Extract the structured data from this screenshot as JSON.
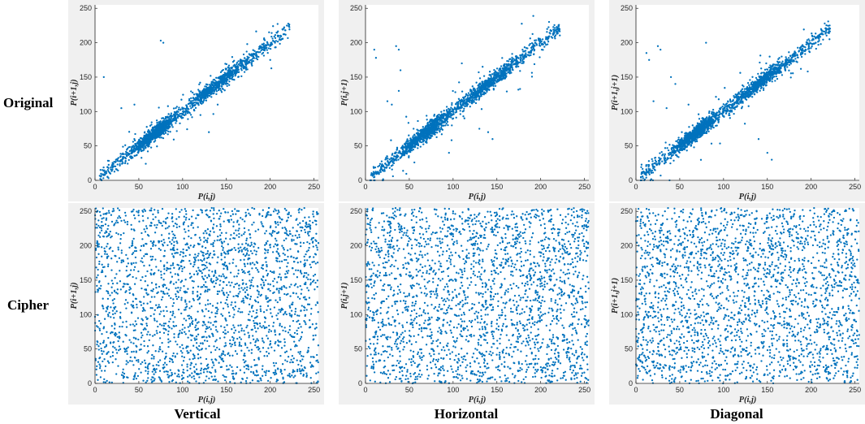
{
  "row_labels": [
    "Original",
    "Cipher"
  ],
  "col_labels": [
    "Vertical",
    "Horizontal",
    "Diagonal"
  ],
  "colors": {
    "points": "#0072BD",
    "axes_bg": "#ffffff",
    "figure_bg": "#f0f0f0",
    "axis": "#262626"
  },
  "chart_data": [
    {
      "id": "original-vertical",
      "type": "scatter",
      "distribution": "correlated",
      "xlabel": "P(i,j)",
      "ylabel": "P(i+1,j)",
      "xlim": [
        0,
        255
      ],
      "ylim": [
        0,
        255
      ],
      "xticks": [
        0,
        50,
        100,
        150,
        200,
        250
      ],
      "yticks": [
        0,
        50,
        100,
        150,
        200,
        250
      ],
      "trend": {
        "x_range": [
          5,
          222
        ],
        "slope": 1.0,
        "intercept": 0
      },
      "outliers": [
        [
          75,
          203
        ],
        [
          78,
          200
        ],
        [
          10,
          150
        ],
        [
          30,
          105
        ],
        [
          45,
          110
        ],
        [
          130,
          70
        ],
        [
          140,
          110
        ],
        [
          200,
          175
        ]
      ]
    },
    {
      "id": "original-horizontal",
      "type": "scatter",
      "distribution": "correlated",
      "xlabel": "P(i,j)",
      "ylabel": "P(i,j+1)",
      "xlim": [
        0,
        255
      ],
      "ylim": [
        0,
        255
      ],
      "xticks": [
        0,
        50,
        100,
        150,
        200,
        250
      ],
      "yticks": [
        0,
        50,
        100,
        150,
        200,
        250
      ],
      "trend": {
        "x_range": [
          5,
          222
        ],
        "slope": 1.0,
        "intercept": 0
      },
      "outliers": [
        [
          10,
          190
        ],
        [
          12,
          178
        ],
        [
          35,
          195
        ],
        [
          38,
          190
        ],
        [
          40,
          160
        ],
        [
          38,
          130
        ],
        [
          25,
          115
        ],
        [
          30,
          110
        ],
        [
          140,
          70
        ],
        [
          145,
          60
        ],
        [
          130,
          75
        ],
        [
          110,
          170
        ]
      ]
    },
    {
      "id": "original-diagonal",
      "type": "scatter",
      "distribution": "correlated",
      "xlabel": "P(i,j)",
      "ylabel": "P(i+1,j+1)",
      "xlim": [
        0,
        255
      ],
      "ylim": [
        0,
        255
      ],
      "xticks": [
        0,
        50,
        100,
        150,
        200,
        250
      ],
      "yticks": [
        0,
        50,
        100,
        150,
        200,
        250
      ],
      "trend": {
        "x_range": [
          5,
          222
        ],
        "slope": 1.0,
        "intercept": 0
      },
      "outliers": [
        [
          12,
          185
        ],
        [
          15,
          175
        ],
        [
          25,
          195
        ],
        [
          28,
          190
        ],
        [
          40,
          150
        ],
        [
          45,
          140
        ],
        [
          20,
          115
        ],
        [
          35,
          105
        ],
        [
          80,
          200
        ],
        [
          150,
          40
        ],
        [
          155,
          30
        ],
        [
          140,
          60
        ],
        [
          60,
          110
        ]
      ]
    },
    {
      "id": "cipher-vertical",
      "type": "scatter",
      "distribution": "uniform",
      "xlabel": "P(i,j)",
      "ylabel": "P(i+1,j)",
      "xlim": [
        0,
        255
      ],
      "ylim": [
        0,
        255
      ],
      "xticks": [
        0,
        50,
        100,
        150,
        200,
        250
      ],
      "yticks": [
        0,
        50,
        100,
        150,
        200,
        250
      ]
    },
    {
      "id": "cipher-horizontal",
      "type": "scatter",
      "distribution": "uniform",
      "xlabel": "P(i,j)",
      "ylabel": "P(i,j+1)",
      "xlim": [
        0,
        255
      ],
      "ylim": [
        0,
        255
      ],
      "xticks": [
        0,
        50,
        100,
        150,
        200,
        250
      ],
      "yticks": [
        0,
        50,
        100,
        150,
        200,
        250
      ]
    },
    {
      "id": "cipher-diagonal",
      "type": "scatter",
      "distribution": "uniform",
      "xlabel": "P(i,j)",
      "ylabel": "P(i+1,j+1)",
      "xlim": [
        0,
        255
      ],
      "ylim": [
        0,
        255
      ],
      "xticks": [
        0,
        50,
        100,
        150,
        200,
        250
      ],
      "yticks": [
        0,
        50,
        100,
        150,
        200,
        250
      ]
    }
  ]
}
